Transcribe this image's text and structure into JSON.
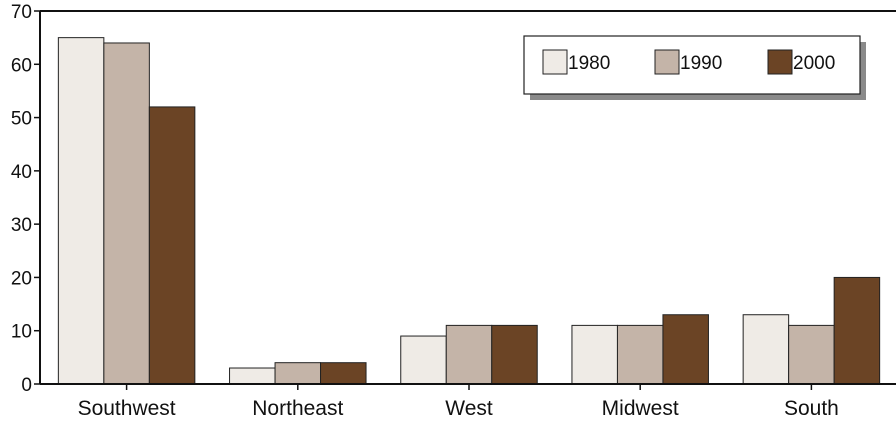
{
  "chart_data": {
    "type": "bar",
    "title": "",
    "xlabel": "",
    "ylabel": "",
    "categories": [
      "Southwest",
      "Northeast",
      "West",
      "Midwest",
      "South"
    ],
    "series": [
      {
        "name": "1980",
        "values": [
          65,
          3,
          9,
          11,
          13
        ],
        "color": "#efebe6"
      },
      {
        "name": "1990",
        "values": [
          64,
          4,
          11,
          11,
          11
        ],
        "color": "#c4b4a8"
      },
      {
        "name": "2000",
        "values": [
          52,
          4,
          11,
          13,
          20
        ],
        "color": "#6b4425"
      }
    ],
    "ylim": [
      0,
      70
    ],
    "yticks": [
      0,
      10,
      20,
      30,
      40,
      50,
      60,
      70
    ],
    "grid": false,
    "legend_position": "top-right"
  }
}
